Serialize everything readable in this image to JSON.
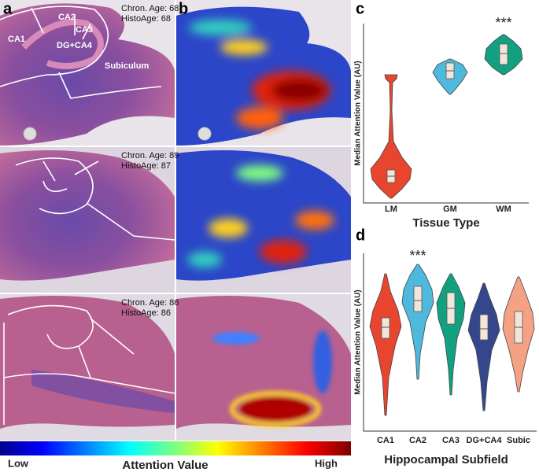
{
  "panels": {
    "a": "a",
    "b": "b",
    "c": "c",
    "d": "d"
  },
  "histology": [
    {
      "chron": "Chron. Age: 68",
      "histo": "HistoAge: 68"
    },
    {
      "chron": "Chron. Age: 89",
      "histo": "HistoAge: 87"
    },
    {
      "chron": "Chron. Age: 86",
      "histo": "HistoAge: 86"
    }
  ],
  "regions": [
    "CA1",
    "CA2",
    "CA3",
    "DG+CA4",
    "Subiculum"
  ],
  "colorbar": {
    "low": "Low",
    "title": "Attention Value",
    "high": "High"
  },
  "tissue_chart": {
    "y_label": "Median Attention Value (AU)",
    "x_label": "Tissue Type",
    "categories": [
      {
        "name": "LM",
        "color": "#e8452f"
      },
      {
        "name": "GM",
        "color": "#4fb8dd"
      },
      {
        "name": "WM",
        "color": "#12a080",
        "significance": "***"
      }
    ]
  },
  "subfield_chart": {
    "y_label": "Median Attention Value (AU)",
    "x_label": "Hippocampal Subfield",
    "categories": [
      {
        "name": "CA1",
        "color": "#e8452f"
      },
      {
        "name": "CA2",
        "color": "#4fb8dd",
        "significance": "***"
      },
      {
        "name": "CA3",
        "color": "#12a080"
      },
      {
        "name": "DG+CA4",
        "color": "#34478c"
      },
      {
        "name": "Subic",
        "color": "#f4a184"
      }
    ]
  }
}
